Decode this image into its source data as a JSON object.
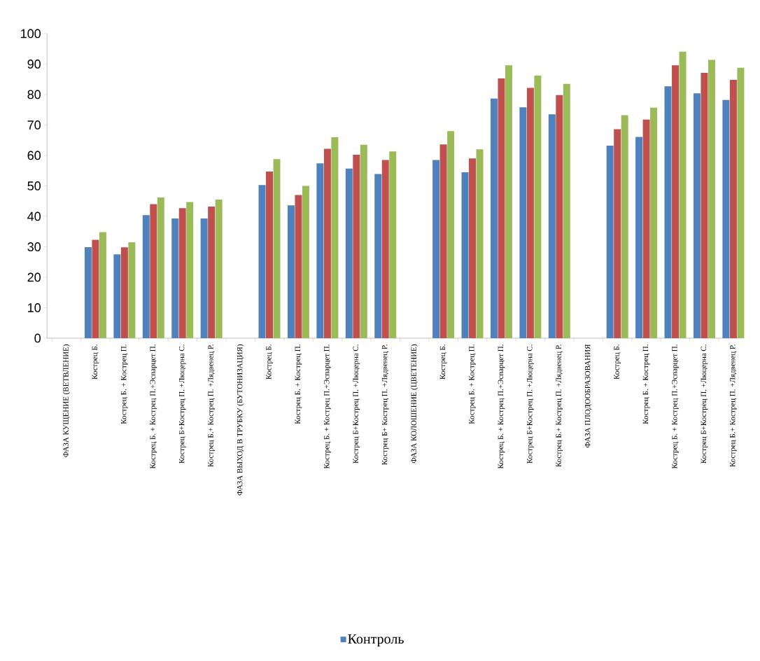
{
  "chart_data": {
    "type": "bar",
    "categories": [
      "ФАЗА КУЩЕНИЕ (ВЕТВЛЕНИЕ)",
      "Кострец Б.",
      "Кострец Б. + Кострец П.",
      "Кострец Б. + Кострец П.+Эспарцет П.",
      "Кострец Б+Кострец П. +Люцерна С.",
      "Кострец Б.+ Кострец П. +Лядвенец Р.",
      "ФАЗА ВЫХОД В ТРУБКУ (БУТОНИЗАЦИЯ)",
      "Кострец Б.",
      "Кострец Б. + Кострец П.",
      "Кострец Б. + Кострец П.+Эспарцет П.",
      "Кострец Б+Кострец П. +Люцерна С.",
      "Кострец Б+ Кострец П. +Лядвенец Р.",
      "ФАЗА КОЛОШЕНИЕ (ЦВЕТЕНИЕ)",
      "Кострец Б.",
      "Кострец Б. + Кострец П.",
      "Кострец Б. + Кострец П.+Эспарцет П.",
      "Кострец Б+Кострец П. +Люцерна С.",
      "Кострец Б.+ Кострец П. +Лядвенец Р.",
      "ФАЗА ПЛОДООБРАЗОВАНИЯ",
      "Кострец Б.",
      "Кострец Б. + Кострец П.",
      "Кострец Б. + Кострец П.+Эспарцет П.",
      "Кострец Б+Кострец П. +Люцерна С.",
      "Кострец Б.+ Кострец П. +Лядвенец Р."
    ],
    "series": [
      {
        "name": "Контроль",
        "color": "#4f81bd",
        "values": [
          null,
          29.9,
          27.5,
          40.4,
          39.3,
          39.3,
          null,
          50.3,
          43.6,
          57.4,
          55.7,
          53.9,
          null,
          58.5,
          54.5,
          78.7,
          75.8,
          73.5,
          null,
          63.2,
          66.1,
          82.7,
          80.4,
          78.2
        ]
      },
      {
        "color": "#c0504d",
        "values": [
          null,
          32.3,
          29.8,
          44.0,
          42.7,
          43.2,
          null,
          54.7,
          47.0,
          62.2,
          60.2,
          58.5,
          null,
          63.6,
          59.0,
          85.3,
          82.2,
          79.8,
          null,
          68.6,
          71.8,
          89.6,
          87.1,
          84.8
        ]
      },
      {
        "color": "#9bbb59",
        "values": [
          null,
          34.8,
          31.5,
          46.2,
          44.7,
          45.5,
          null,
          58.8,
          50.0,
          66.0,
          63.5,
          61.3,
          null,
          68.0,
          62.0,
          89.6,
          86.2,
          83.5,
          null,
          73.2,
          75.7,
          94.1,
          91.4,
          88.8
        ]
      }
    ],
    "ylim": [
      0,
      100
    ],
    "yticks": [
      0,
      10,
      20,
      30,
      40,
      50,
      60,
      70,
      80,
      90,
      100
    ],
    "legend": "bottom"
  }
}
